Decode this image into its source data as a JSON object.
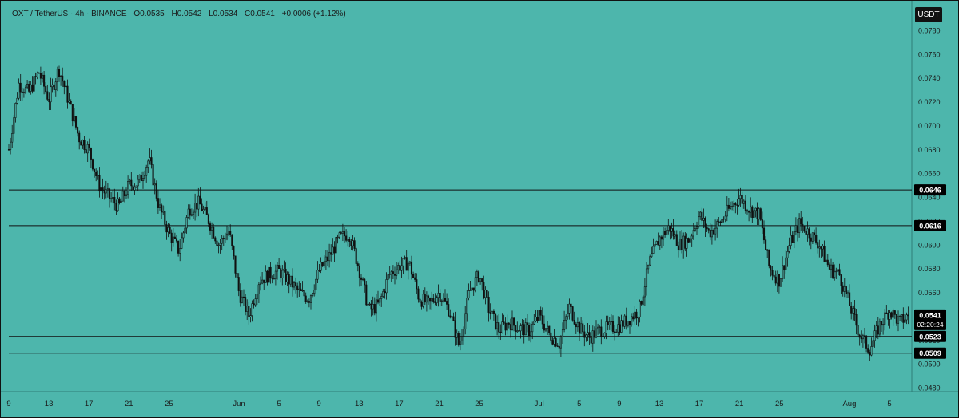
{
  "header": {
    "symbol": "OXT / TetherUS · 4h · BINANCE",
    "open": "O0.0535",
    "high": "H0.0542",
    "low": "L0.0534",
    "close": "C0.0541",
    "change": "+0.0006 (+1.12%)"
  },
  "currency_button": "USDT",
  "colors": {
    "background": "#4db6ac",
    "candle": "#111111",
    "line": "#111111",
    "label_bg": "#000000",
    "label_text": "#ffffff"
  },
  "chart_data": {
    "type": "candlestick",
    "title": "OXT / TetherUS · 4h · BINANCE",
    "ylim": [
      0.047,
      0.079
    ],
    "y_ticks": [
      "0.0780",
      "0.0760",
      "0.0740",
      "0.0720",
      "0.0700",
      "0.0680",
      "0.0660",
      "0.0640",
      "0.0620",
      "0.0600",
      "0.0580",
      "0.0560",
      "0.0540",
      "0.0520",
      "0.0500",
      "0.0480"
    ],
    "x_ticks": [
      "9",
      "13",
      "17",
      "21",
      "25",
      "Jun",
      "5",
      "9",
      "13",
      "17",
      "21",
      "25",
      "Jul",
      "5",
      "9",
      "13",
      "17",
      "21",
      "25",
      "Aug",
      "5"
    ],
    "x_tick_dates": [
      "2023-05-09",
      "2023-05-13",
      "2023-05-17",
      "2023-05-21",
      "2023-05-25",
      "2023-06-01",
      "2023-06-05",
      "2023-06-09",
      "2023-06-13",
      "2023-06-17",
      "2023-06-21",
      "2023-06-25",
      "2023-07-01",
      "2023-07-05",
      "2023-07-09",
      "2023-07-13",
      "2023-07-17",
      "2023-07-21",
      "2023-07-25",
      "2023-08-01",
      "2023-08-05"
    ],
    "horizontal_lines": [
      {
        "value": 0.0646,
        "label": "0.0646"
      },
      {
        "value": 0.0616,
        "label": "0.0616"
      },
      {
        "value": 0.0523,
        "label": "0.0523"
      },
      {
        "value": 0.0509,
        "label": "0.0509"
      }
    ],
    "last_price": {
      "value": 0.0541,
      "label": "0.0541",
      "countdown": "02:20:24"
    },
    "price_path": [
      [
        "2023-05-09",
        0.068
      ],
      [
        "2023-05-10",
        0.0735
      ],
      [
        "2023-05-11",
        0.0728
      ],
      [
        "2023-05-12",
        0.0745
      ],
      [
        "2023-05-13",
        0.0722
      ],
      [
        "2023-05-14",
        0.0748
      ],
      [
        "2023-05-15",
        0.072
      ],
      [
        "2023-05-16",
        0.069
      ],
      [
        "2023-05-17",
        0.068
      ],
      [
        "2023-05-18",
        0.065
      ],
      [
        "2023-05-19",
        0.064
      ],
      [
        "2023-05-20",
        0.0632
      ],
      [
        "2023-05-21",
        0.065
      ],
      [
        "2023-05-22",
        0.0652
      ],
      [
        "2023-05-23",
        0.0672
      ],
      [
        "2023-05-24",
        0.0632
      ],
      [
        "2023-05-25",
        0.061
      ],
      [
        "2023-05-26",
        0.0595
      ],
      [
        "2023-05-27",
        0.063
      ],
      [
        "2023-05-28",
        0.0635
      ],
      [
        "2023-05-29",
        0.062
      ],
      [
        "2023-05-30",
        0.06
      ],
      [
        "2023-05-31",
        0.0612
      ],
      [
        "2023-06-01",
        0.056
      ],
      [
        "2023-06-02",
        0.054
      ],
      [
        "2023-06-03",
        0.057
      ],
      [
        "2023-06-04",
        0.0575
      ],
      [
        "2023-06-05",
        0.0578
      ],
      [
        "2023-06-06",
        0.057
      ],
      [
        "2023-06-07",
        0.056
      ],
      [
        "2023-06-08",
        0.0555
      ],
      [
        "2023-06-09",
        0.0578
      ],
      [
        "2023-06-10",
        0.059
      ],
      [
        "2023-06-11",
        0.0605
      ],
      [
        "2023-06-12",
        0.061
      ],
      [
        "2023-06-13",
        0.058
      ],
      [
        "2023-06-14",
        0.0545
      ],
      [
        "2023-06-15",
        0.055
      ],
      [
        "2023-06-16",
        0.0575
      ],
      [
        "2023-06-17",
        0.0582
      ],
      [
        "2023-06-18",
        0.0585
      ],
      [
        "2023-06-19",
        0.0555
      ],
      [
        "2023-06-20",
        0.055
      ],
      [
        "2023-06-21",
        0.056
      ],
      [
        "2023-06-22",
        0.0545
      ],
      [
        "2023-06-23",
        0.0515
      ],
      [
        "2023-06-24",
        0.056
      ],
      [
        "2023-06-25",
        0.0575
      ],
      [
        "2023-06-26",
        0.0545
      ],
      [
        "2023-06-27",
        0.0528
      ],
      [
        "2023-06-28",
        0.0535
      ],
      [
        "2023-06-29",
        0.053
      ],
      [
        "2023-06-30",
        0.0528
      ],
      [
        "2023-07-01",
        0.054
      ],
      [
        "2023-07-02",
        0.0525
      ],
      [
        "2023-07-03",
        0.0517
      ],
      [
        "2023-07-04",
        0.0548
      ],
      [
        "2023-07-05",
        0.053
      ],
      [
        "2023-07-06",
        0.0522
      ],
      [
        "2023-07-07",
        0.0528
      ],
      [
        "2023-07-08",
        0.053
      ],
      [
        "2023-07-09",
        0.0532
      ],
      [
        "2023-07-10",
        0.0538
      ],
      [
        "2023-07-11",
        0.0545
      ],
      [
        "2023-07-12",
        0.0585
      ],
      [
        "2023-07-13",
        0.0605
      ],
      [
        "2023-07-14",
        0.0615
      ],
      [
        "2023-07-15",
        0.06
      ],
      [
        "2023-07-16",
        0.0605
      ],
      [
        "2023-07-17",
        0.0625
      ],
      [
        "2023-07-18",
        0.061
      ],
      [
        "2023-07-19",
        0.0618
      ],
      [
        "2023-07-20",
        0.063
      ],
      [
        "2023-07-21",
        0.064
      ],
      [
        "2023-07-22",
        0.063
      ],
      [
        "2023-07-23",
        0.0625
      ],
      [
        "2023-07-24",
        0.058
      ],
      [
        "2023-07-25",
        0.057
      ],
      [
        "2023-07-26",
        0.06
      ],
      [
        "2023-07-27",
        0.0618
      ],
      [
        "2023-07-28",
        0.061
      ],
      [
        "2023-07-29",
        0.06
      ],
      [
        "2023-07-30",
        0.058
      ],
      [
        "2023-07-31",
        0.0575
      ],
      [
        "2023-08-01",
        0.055
      ],
      [
        "2023-08-02",
        0.0525
      ],
      [
        "2023-08-03",
        0.0512
      ],
      [
        "2023-08-04",
        0.0532
      ],
      [
        "2023-08-05",
        0.0545
      ],
      [
        "2023-08-06",
        0.0535
      ],
      [
        "2023-08-07",
        0.0541
      ]
    ]
  }
}
